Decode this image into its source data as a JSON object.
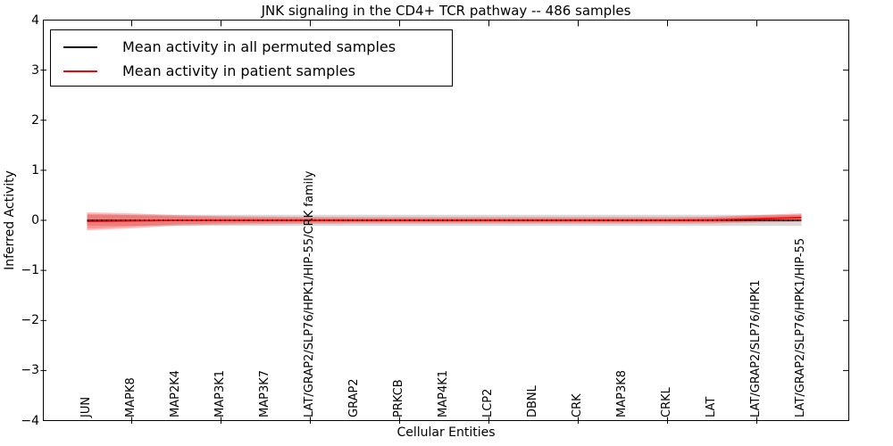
{
  "title": "JNK signaling in the CD4+ TCR pathway -- 486 samples",
  "x_axis": {
    "label": "Cellular Entities"
  },
  "y_axis": {
    "label": "Inferred Activity",
    "tick_labels": [
      "4",
      "3",
      "2",
      "1",
      "0",
      "−1",
      "−2",
      "−3",
      "−4"
    ]
  },
  "legend": {
    "position": "upper left",
    "items": [
      {
        "label": "Mean activity in all permuted samples",
        "color": "#000000"
      },
      {
        "label": "Mean activity in patient samples",
        "color": "#ff0000"
      }
    ]
  },
  "colors": {
    "background": "#ffffff",
    "spine": "#000000",
    "permuted_line": "#000000",
    "patient_line": "#ff0000",
    "zero_dotted_line": "#000000",
    "permuted_band_fill": "rgba(0,0,0,0.15)",
    "patient_band_outer_fill": "rgba(255,0,0,0.25)",
    "patient_band_inner_fill": "rgba(255,0,0,0.22)"
  },
  "chart_data": {
    "type": "line",
    "title": "JNK signaling in the CD4+ TCR pathway -- 486 samples",
    "xlabel": "Cellular Entities",
    "ylabel": "Inferred Activity",
    "ylim": [
      -4,
      4
    ],
    "yticks": [
      4,
      3,
      2,
      1,
      0,
      -1,
      -2,
      -3,
      -4
    ],
    "grid": false,
    "legend_position": "upper left",
    "categories": [
      "JUN",
      "MAPK8",
      "MAP2K4",
      "MAP3K1",
      "MAP3K7",
      "LAT/GRAP2/SLP76/HPK1/HIP-55/CRK family",
      "GRAP2",
      "PRKCB",
      "MAP4K1",
      "LCP2",
      "DBNL",
      "CRK",
      "MAP3K8",
      "CRKL",
      "LAT",
      "LAT/GRAP2/SLP76/HPK1",
      "LAT/GRAP2/SLP76/HPK1/HIP-55"
    ],
    "series": [
      {
        "name": "Mean activity in all permuted samples",
        "color": "#000000",
        "line_style": "solid, with dotted zero reference on top",
        "values": [
          0,
          0,
          0,
          0,
          0,
          0,
          0,
          0,
          0,
          0,
          0,
          0,
          0,
          0,
          0,
          0,
          0
        ],
        "band_std": [
          0.11,
          0.11,
          0.11,
          0.11,
          0.11,
          0.11,
          0.11,
          0.11,
          0.11,
          0.11,
          0.11,
          0.11,
          0.11,
          0.11,
          0.11,
          0.11,
          0.11
        ]
      },
      {
        "name": "Mean activity in patient samples",
        "color": "#ff0000",
        "line_style": "solid",
        "values": [
          -0.02,
          -0.01,
          0,
          0,
          0,
          0,
          0,
          0,
          0,
          0,
          0,
          0,
          0,
          0,
          0.005,
          0.03,
          0.055
        ],
        "band_std_outer": [
          0.18,
          0.15,
          0.105,
          0.085,
          0.075,
          0.07,
          0.065,
          0.065,
          0.065,
          0.065,
          0.065,
          0.065,
          0.065,
          0.065,
          0.068,
          0.075,
          0.085
        ],
        "band_std_inner": [
          0.15,
          0.115,
          0.075,
          0.058,
          0.05,
          0.046,
          0.04,
          0.04,
          0.04,
          0.04,
          0.04,
          0.04,
          0.04,
          0.04,
          0.044,
          0.052,
          0.06
        ]
      }
    ],
    "zero_line": {
      "value": 0,
      "style": "dotted",
      "color": "#000000"
    }
  }
}
